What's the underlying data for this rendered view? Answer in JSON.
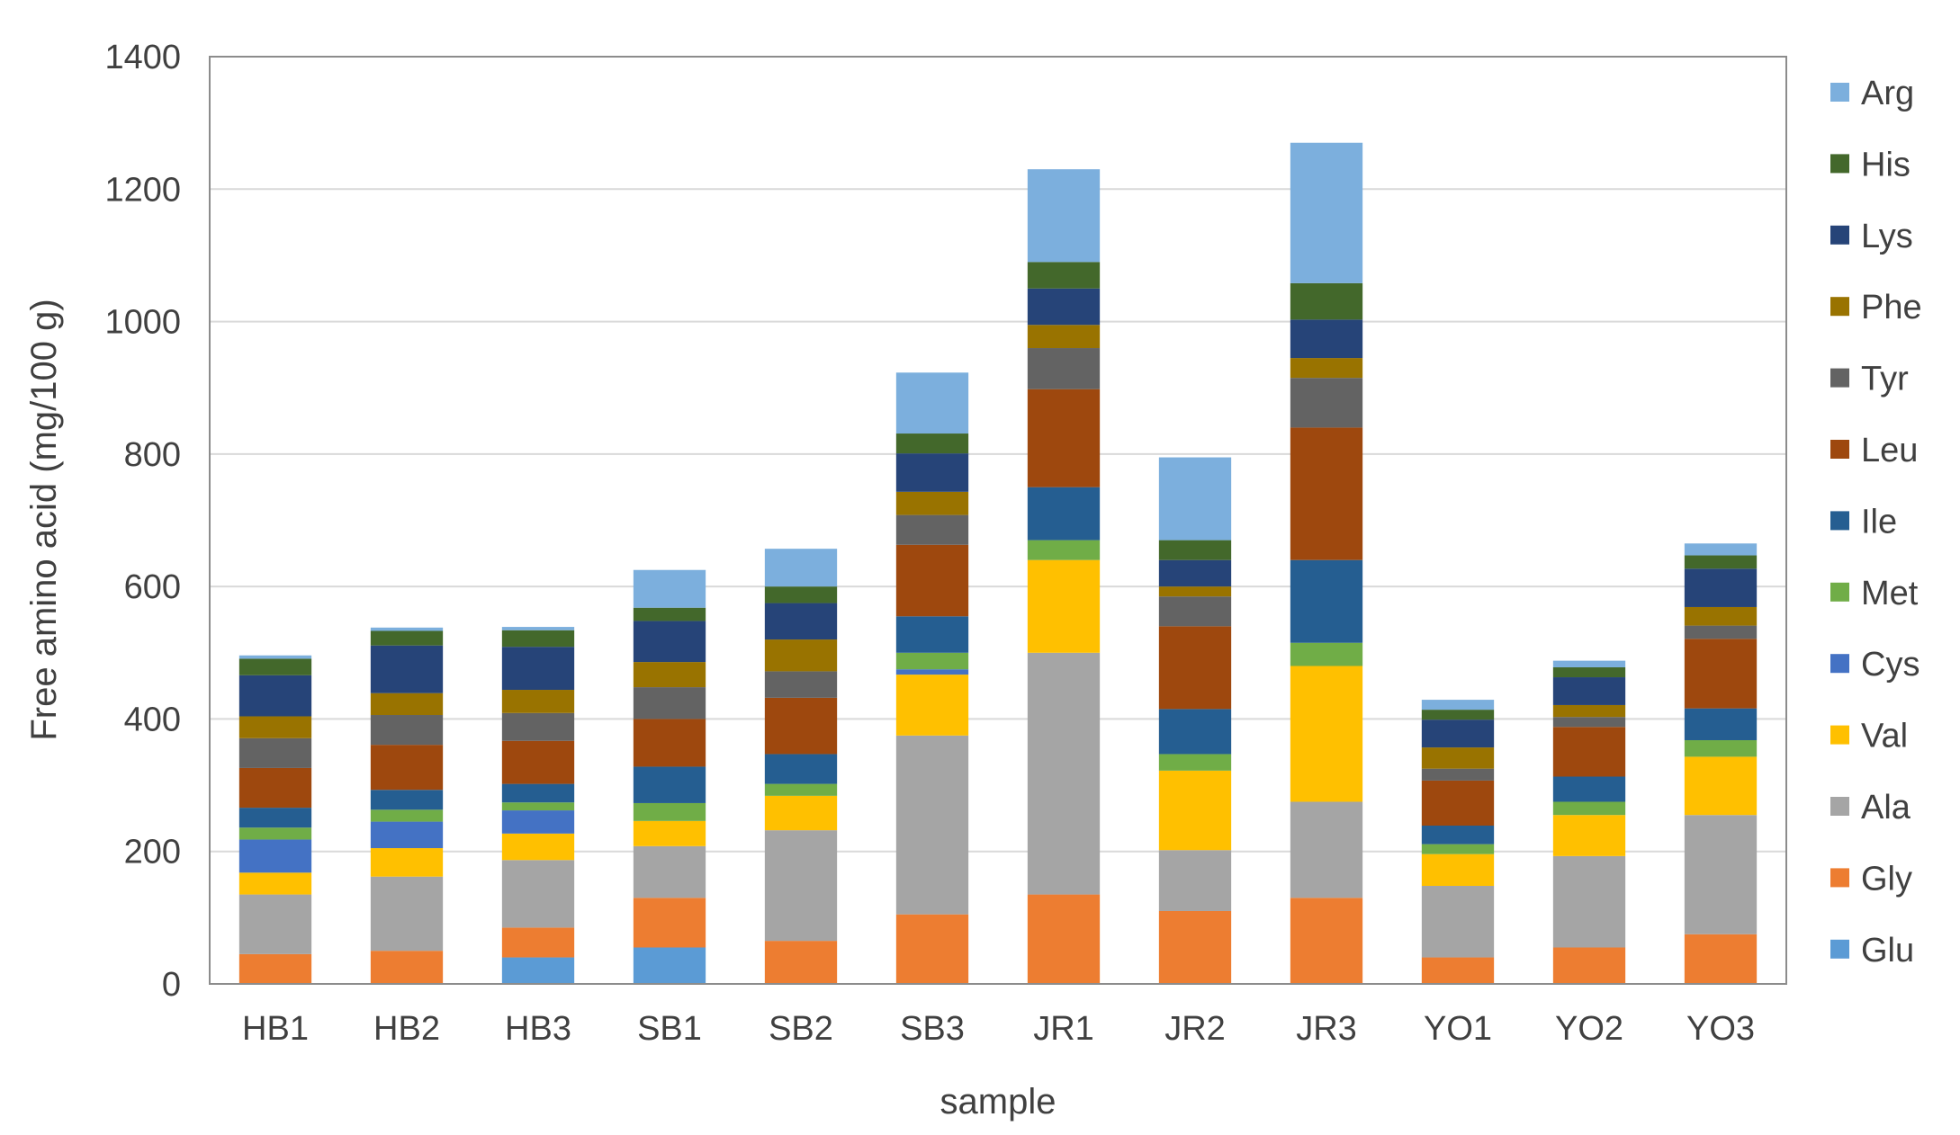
{
  "chart_data": {
    "type": "bar",
    "stacked": true,
    "title": "",
    "xlabel": "sample",
    "ylabel": "Free amino acid (mg/100 g)",
    "ylim": [
      0,
      1400
    ],
    "yticks": [
      "0",
      "200",
      "400",
      "600",
      "800",
      "1000",
      "1200",
      "1400"
    ],
    "grid": true,
    "legend_position": "right",
    "categories": [
      "HB1",
      "HB2",
      "HB3",
      "SB1",
      "SB2",
      "SB3",
      "JR1",
      "JR2",
      "JR3",
      "YO1",
      "YO2",
      "YO3"
    ],
    "series": [
      {
        "name": "Glu",
        "color": "#5B9BD5",
        "values": [
          0,
          0,
          40,
          55,
          0,
          0,
          0,
          0,
          0,
          0,
          0,
          0
        ]
      },
      {
        "name": "Gly",
        "color": "#ED7D31",
        "values": [
          45,
          50,
          45,
          75,
          65,
          105,
          135,
          110,
          130,
          40,
          55,
          75
        ]
      },
      {
        "name": "Ala",
        "color": "#A5A5A5",
        "values": [
          90,
          112,
          102,
          78,
          167,
          270,
          365,
          92,
          145,
          108,
          138,
          180
        ]
      },
      {
        "name": "Val",
        "color": "#FFC000",
        "values": [
          33,
          43,
          40,
          38,
          52,
          92,
          140,
          120,
          205,
          48,
          62,
          88
        ]
      },
      {
        "name": "Cys",
        "color": "#4472C4",
        "values": [
          50,
          40,
          35,
          0,
          0,
          8,
          0,
          0,
          0,
          0,
          0,
          0
        ]
      },
      {
        "name": "Met",
        "color": "#70AD47",
        "values": [
          18,
          18,
          12,
          27,
          18,
          25,
          30,
          25,
          35,
          15,
          20,
          25
        ]
      },
      {
        "name": "Ile",
        "color": "#255E91",
        "values": [
          30,
          30,
          28,
          55,
          45,
          55,
          80,
          68,
          125,
          28,
          38,
          48
        ]
      },
      {
        "name": "Leu",
        "color": "#9E480E",
        "values": [
          60,
          68,
          65,
          72,
          85,
          108,
          148,
          125,
          200,
          68,
          75,
          105
        ]
      },
      {
        "name": "Tyr",
        "color": "#636363",
        "values": [
          45,
          45,
          42,
          48,
          40,
          45,
          62,
          45,
          75,
          18,
          15,
          20
        ]
      },
      {
        "name": "Phe",
        "color": "#997300",
        "values": [
          33,
          33,
          35,
          38,
          48,
          35,
          35,
          15,
          30,
          32,
          18,
          28
        ]
      },
      {
        "name": "Lys",
        "color": "#264478",
        "values": [
          62,
          72,
          65,
          62,
          55,
          58,
          55,
          40,
          58,
          42,
          42,
          58
        ]
      },
      {
        "name": "His",
        "color": "#43682B",
        "values": [
          25,
          22,
          25,
          20,
          25,
          30,
          40,
          30,
          55,
          15,
          15,
          20
        ]
      },
      {
        "name": "Arg",
        "color": "#7CAFDD",
        "values": [
          5,
          5,
          5,
          57,
          57,
          92,
          140,
          125,
          212,
          15,
          10,
          18
        ]
      }
    ]
  }
}
